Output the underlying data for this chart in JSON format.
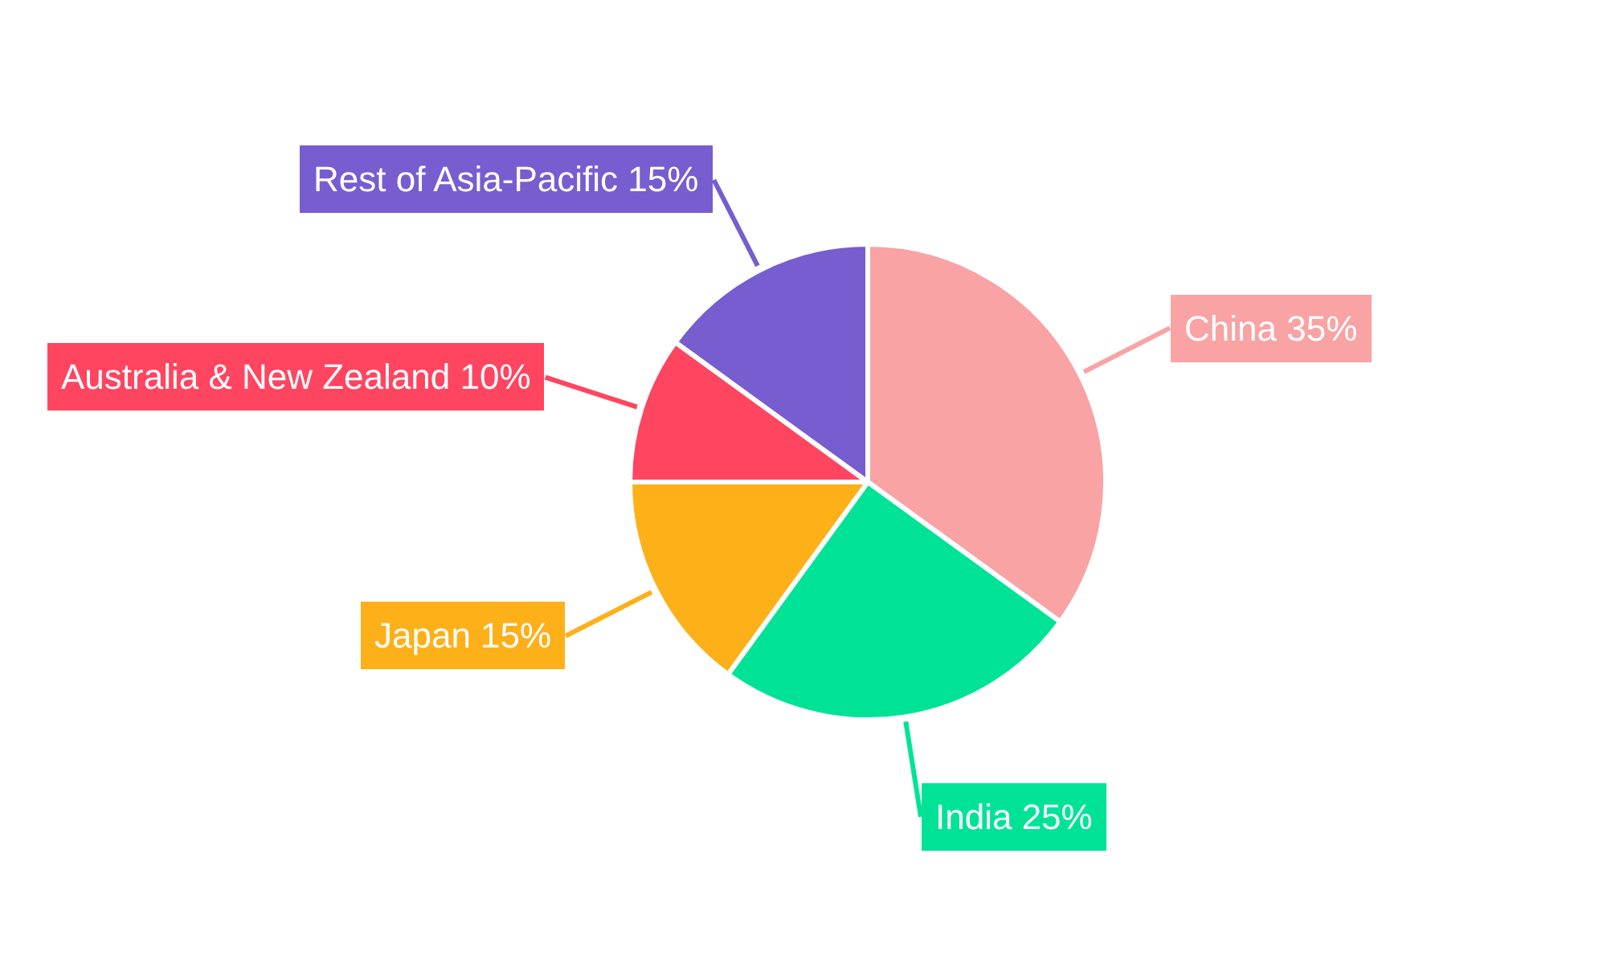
{
  "chart_data": {
    "type": "pie",
    "categories": [
      "China",
      "India",
      "Japan",
      "Australia & New Zealand",
      "Rest of Asia-Pacific"
    ],
    "values": [
      35,
      25,
      15,
      10,
      15
    ],
    "value_labels": [
      "35%",
      "25%",
      "15%",
      "10%",
      "15%"
    ],
    "colors": [
      "#f9a3a4",
      "#00e396",
      "#feb019",
      "#ff4560",
      "#775dd0"
    ]
  }
}
